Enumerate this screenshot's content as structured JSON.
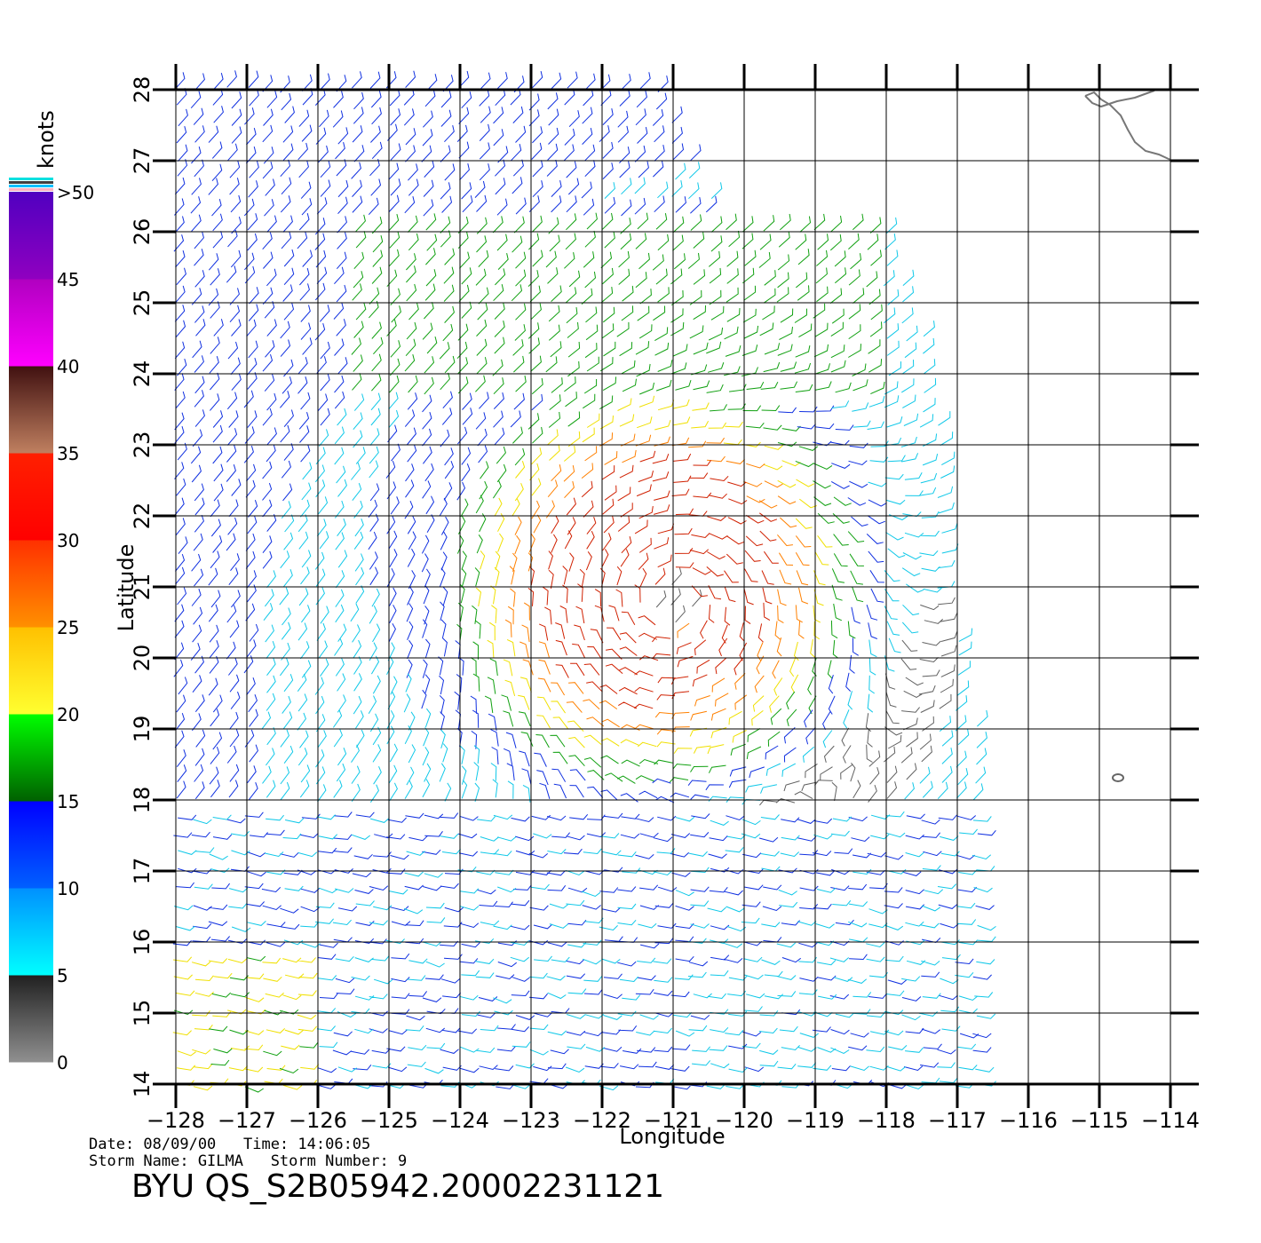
{
  "map": {
    "xlabel": "Longitude",
    "ylabel": "Latitude",
    "lon_ticks": [
      "-128",
      "-127",
      "-126",
      "-125",
      "-124",
      "-123",
      "-122",
      "-121",
      "-120",
      "-119",
      "-118",
      "-117",
      "-116",
      "-115",
      "-114"
    ],
    "lat_ticks": [
      "14",
      "15",
      "16",
      "17",
      "18",
      "19",
      "20",
      "21",
      "22",
      "23",
      "24",
      "25",
      "26",
      "27",
      "28"
    ],
    "lon_range": [
      -128,
      -114
    ],
    "lat_range": [
      14,
      28
    ],
    "storm_center": {
      "lon": -121.0,
      "lat": 20.8
    },
    "swath_east_edge_lon": -116.5
  },
  "colorbar": {
    "unit": "knots",
    "labels": [
      "0",
      "5",
      "10",
      "15",
      "20",
      "25",
      "30",
      "35",
      "40",
      "45",
      ">50"
    ],
    "colors": [
      "#808080",
      "#00e8ff",
      "#0000ff",
      "#00ff00",
      "#ffff00",
      "#ffc000",
      "#ff2000",
      "#603020",
      "#ff00ff",
      "#6000c0"
    ]
  },
  "info": {
    "line1": "Date: 08/09/00   Time: 14:06:05",
    "line2": "Storm Name: GILMA   Storm Number: 9",
    "title": "BYU QS_S2B05942.20002231121"
  }
}
